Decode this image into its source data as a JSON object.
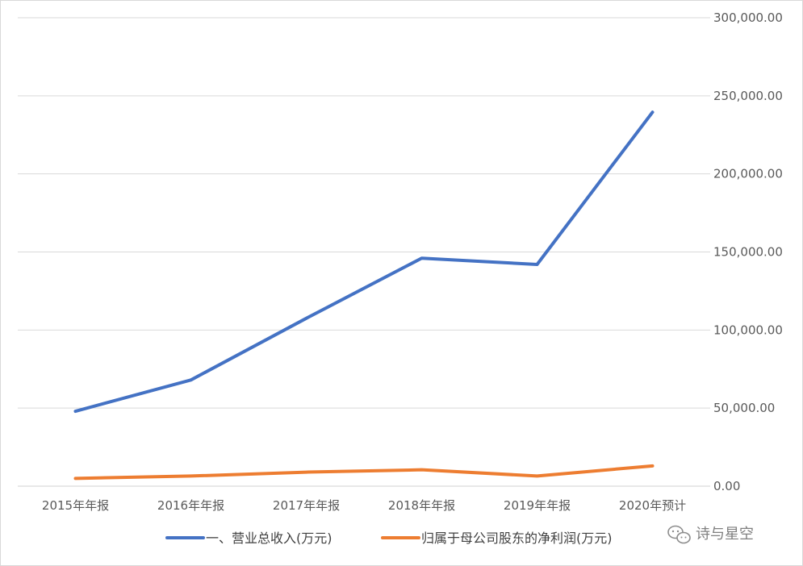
{
  "chart_data": {
    "type": "line",
    "categories": [
      "2015年年报",
      "2016年年报",
      "2017年年报",
      "2018年年报",
      "2019年年报",
      "2020年预计"
    ],
    "series": [
      {
        "name": "一、营业总收入(万元)",
        "color": "#4472C4",
        "values": [
          48000,
          68000,
          107500,
          146000,
          142000,
          239500
        ]
      },
      {
        "name": "归属于母公司股东的净利润(万元)",
        "color": "#ED7D31",
        "values": [
          5000,
          6500,
          9000,
          10500,
          6500,
          13000
        ]
      }
    ],
    "y_axis": {
      "position": "right",
      "min": 0,
      "max": 300000,
      "step": 50000,
      "tick_labels": [
        "0.00",
        "50,000.00",
        "100,000.00",
        "150,000.00",
        "200,000.00",
        "250,000.00",
        "300,000.00"
      ]
    },
    "grid": true,
    "legend_position": "bottom"
  },
  "watermark": {
    "text": "诗与星空",
    "icon": "wechat-icon"
  }
}
